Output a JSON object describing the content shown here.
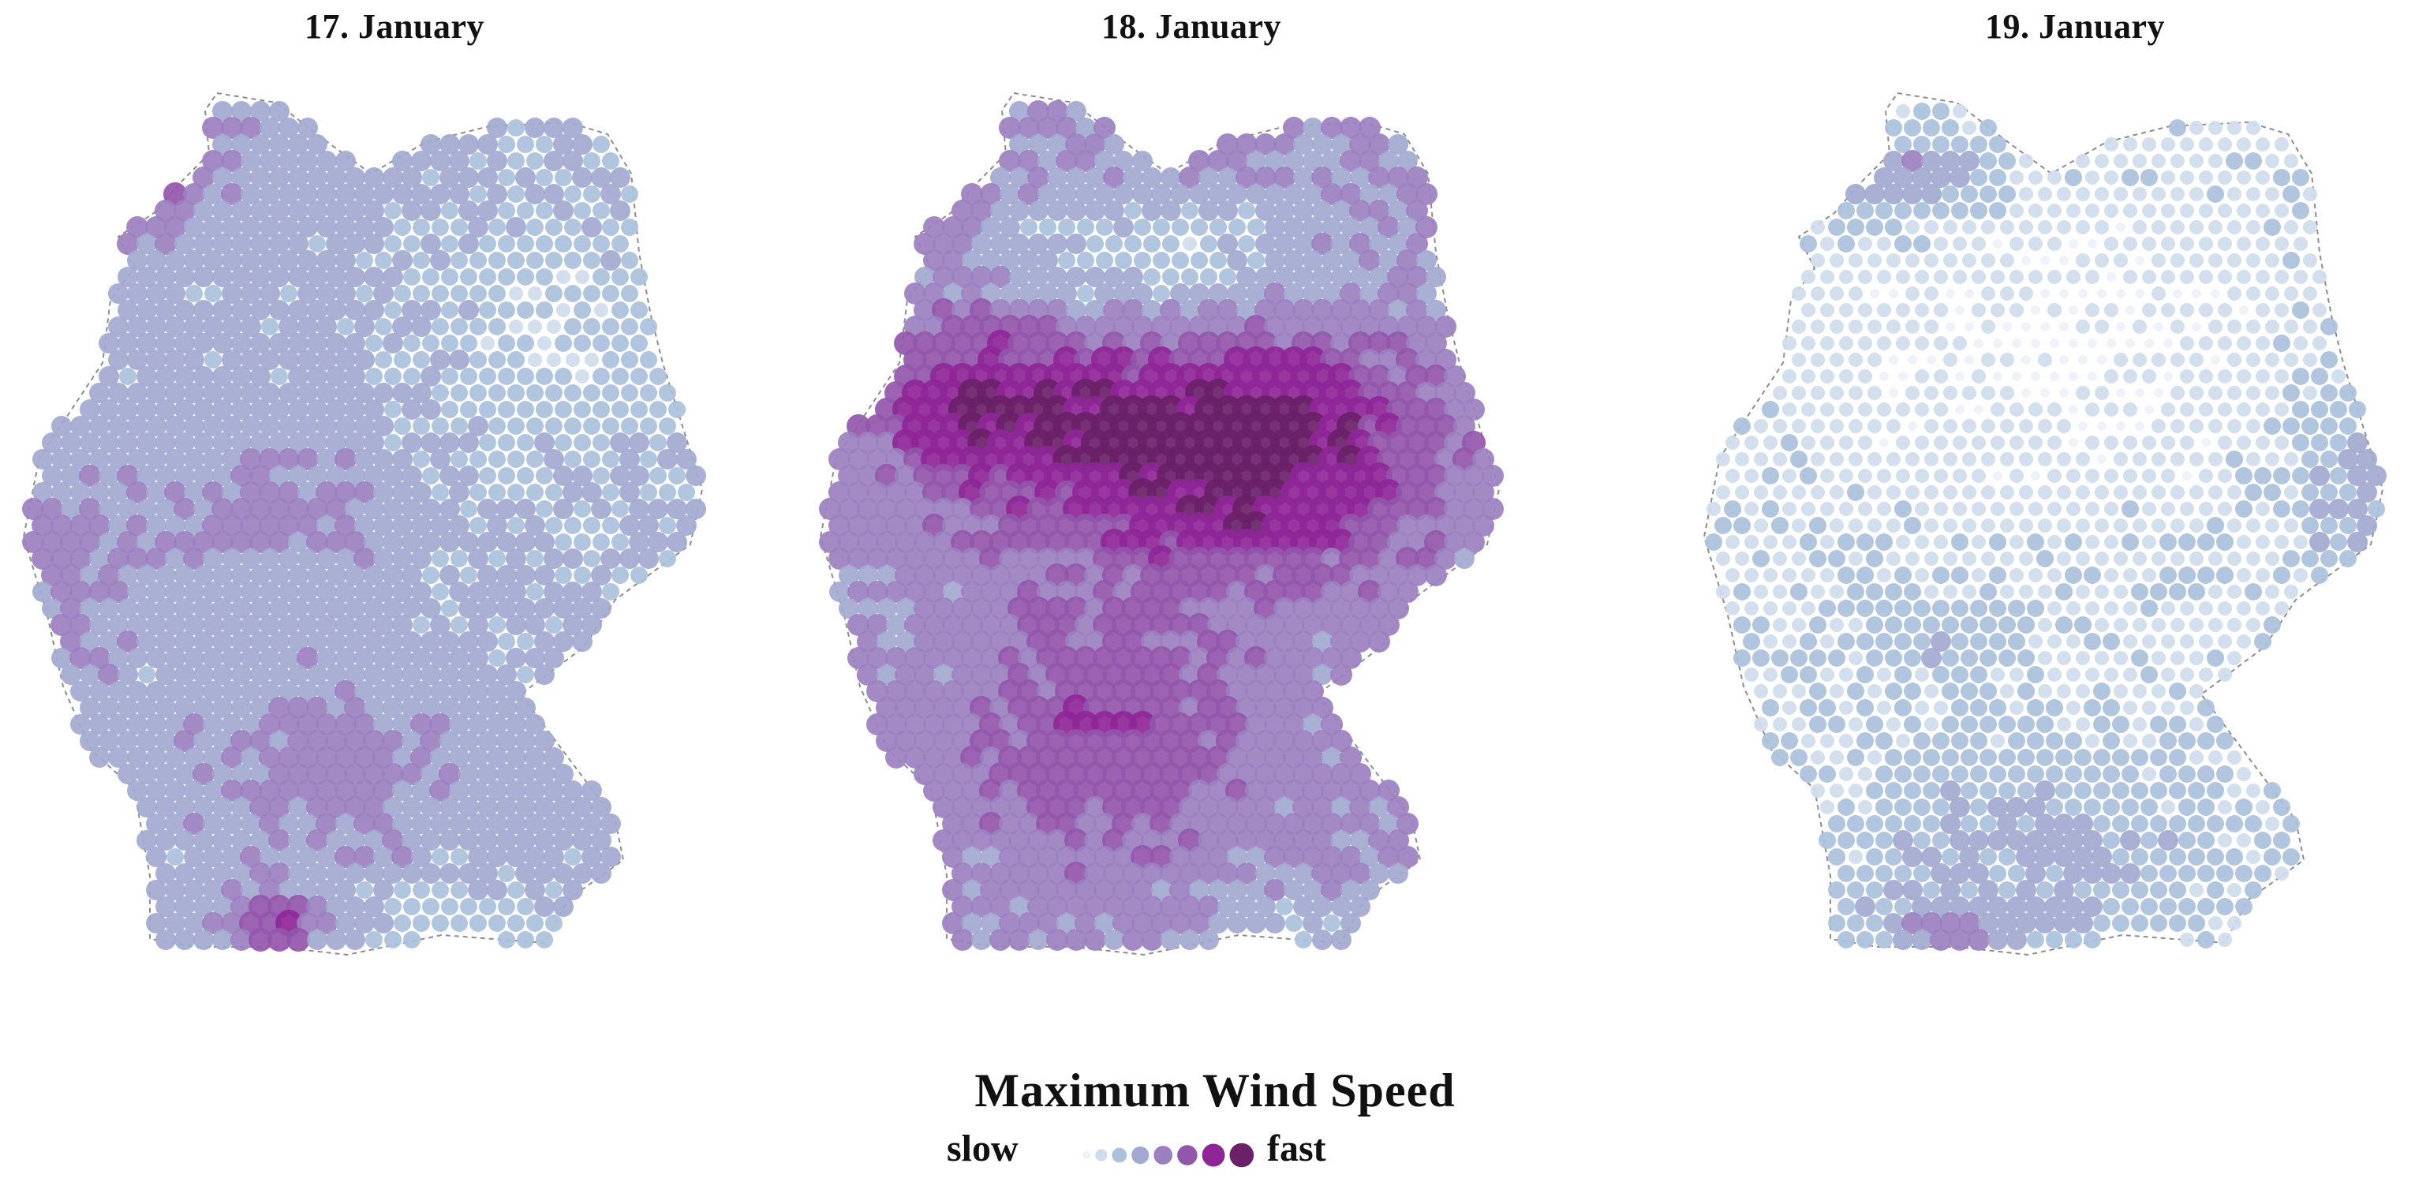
{
  "panels": [
    {
      "title": "17. January",
      "pattern": "calm-coast"
    },
    {
      "title": "18. January",
      "pattern": "storm"
    },
    {
      "title": "19. January",
      "pattern": "calm"
    }
  ],
  "legend": {
    "title": "Maximum Wind Speed",
    "slow_label": "slow",
    "fast_label": "fast",
    "levels": 8
  },
  "colors": {
    "scale": [
      "#eef2f8",
      "#cfdcec",
      "#aac0dc",
      "#a3a9d0",
      "#9b80c0",
      "#9256ab",
      "#8f2698",
      "#6a2168"
    ]
  }
}
